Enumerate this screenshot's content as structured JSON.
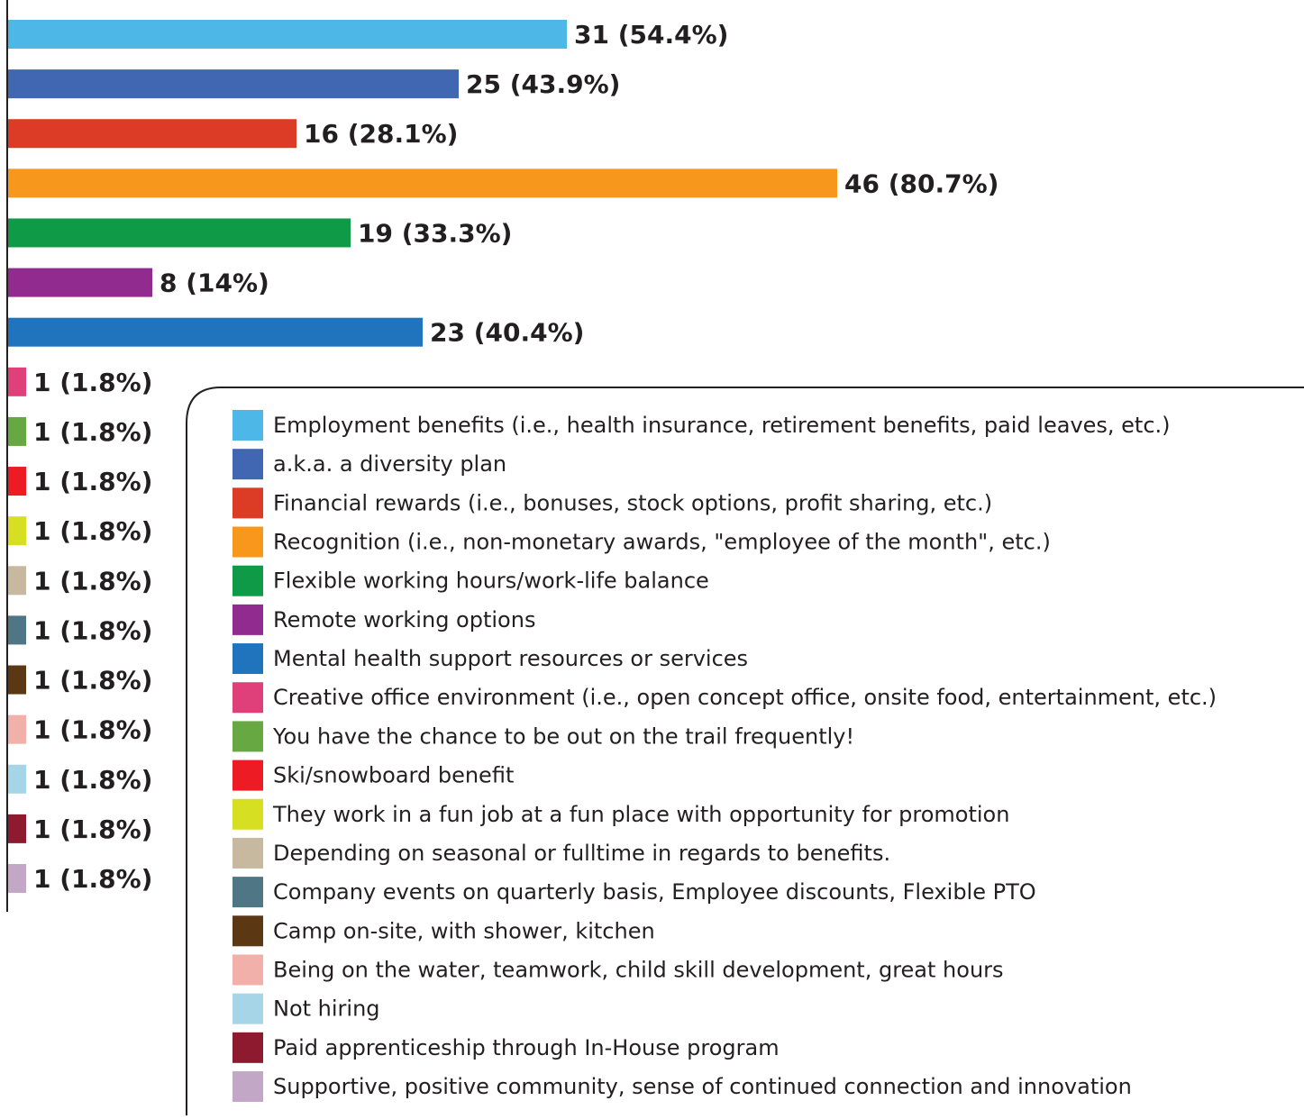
{
  "chart_data": {
    "type": "bar",
    "orientation": "horizontal",
    "categories": [
      "Employment benefits (i.e., health insurance, retirement benefits, paid leaves, etc.)",
      "a.k.a. a diversity plan",
      "Financial rewards (i.e., bonuses, stock options, profit sharing, etc.)",
      "Recognition (i.e., non-monetary awards, \"employee of the month\", etc.)",
      "Flexible working hours/work-life balance",
      "Remote working options",
      "Mental health support resources or services",
      "Creative office environment (i.e., open concept office, onsite food, entertainment, etc.)",
      "You have the chance to be out on the trail frequently!",
      "Ski/snowboard benefit",
      "They work in a fun job at a fun place with opportunity for promotion",
      "Depending on seasonal or fulltime in regards to benefits.",
      "Company events on quarterly basis, Employee discounts, Flexible PTO",
      "Camp on-site, with shower, kitchen",
      "Being on the water, teamwork, child skill development, great hours",
      "Not hiring",
      "Paid apprenticeship through In-House program",
      "Supportive, positive community, sense of continued connection and innovation"
    ],
    "values": [
      31,
      25,
      16,
      46,
      19,
      8,
      23,
      1,
      1,
      1,
      1,
      1,
      1,
      1,
      1,
      1,
      1,
      1
    ],
    "value_labels": [
      "31 (54.4%)",
      "25 (43.9%)",
      "16 (28.1%)",
      "46 (80.7%)",
      "19 (33.3%)",
      "8 (14%)",
      "23 (40.4%)",
      "1 (1.8%)",
      "1 (1.8%)",
      "1 (1.8%)",
      "1 (1.8%)",
      "1 (1.8%)",
      "1 (1.8%)",
      "1 (1.8%)",
      "1 (1.8%)",
      "1 (1.8%)",
      "1 (1.8%)",
      "1 (1.8%)"
    ],
    "colors": [
      "#4db8e8",
      "#4267b2",
      "#dc3c26",
      "#f7981d",
      "#0f9a48",
      "#922b90",
      "#1f74bd",
      "#e0407a",
      "#67a843",
      "#ed1c24",
      "#d7df23",
      "#c6b9a0",
      "#4f7685",
      "#5c3714",
      "#f2b0ab",
      "#a5d5e6",
      "#8d1a2e",
      "#c3a7c6"
    ],
    "xlim": [
      0,
      60
    ],
    "legend": "bottom-right"
  }
}
